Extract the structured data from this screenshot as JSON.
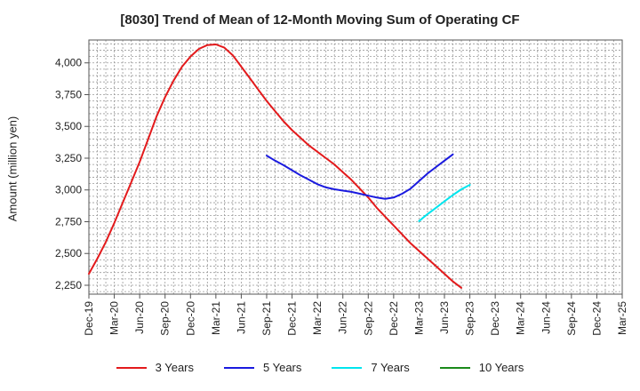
{
  "chart_data": {
    "type": "line",
    "title": "[8030]  Trend of Mean of 12-Month Moving Sum of Operating CF",
    "xlabel": "",
    "ylabel": "Amount (million yen)",
    "ylim": [
      2180,
      4180
    ],
    "yticks": [
      2250,
      2500,
      2750,
      3000,
      3250,
      3500,
      3750,
      4000
    ],
    "ytick_labels": [
      "2,250",
      "2,500",
      "2,750",
      "3,000",
      "3,250",
      "3,500",
      "3,750",
      "4,000"
    ],
    "x_start": "Dec-19",
    "x_end": "Mar-25",
    "xtick_labels": [
      "Dec-19",
      "Mar-20",
      "Jun-20",
      "Sep-20",
      "Dec-20",
      "Mar-21",
      "Jun-21",
      "Sep-21",
      "Dec-21",
      "Mar-22",
      "Jun-22",
      "Sep-22",
      "Dec-22",
      "Mar-23",
      "Jun-23",
      "Sep-23",
      "Dec-23",
      "Mar-24",
      "Jun-24",
      "Sep-24",
      "Dec-24",
      "Mar-25"
    ],
    "grid": true,
    "legend_position": "bottom",
    "series": [
      {
        "name": "3 Years",
        "color": "#e31a1c",
        "x": [
          0,
          1,
          2,
          3,
          4,
          5,
          6,
          7,
          8,
          9,
          10,
          11,
          12,
          13,
          14,
          15,
          16,
          17,
          18,
          19,
          20,
          21,
          22,
          23,
          24,
          25,
          26,
          27,
          28,
          29,
          30,
          31,
          32,
          33,
          34,
          35,
          36,
          37,
          38,
          39,
          40,
          41,
          42,
          43,
          44,
          45,
          46,
          47,
          48,
          49,
          50,
          51
        ],
        "y": [
          2340,
          2460,
          2590,
          2740,
          2900,
          3060,
          3220,
          3400,
          3580,
          3730,
          3860,
          3970,
          4050,
          4110,
          4140,
          4145,
          4120,
          4060,
          3970,
          3880,
          3790,
          3700,
          3620,
          3540,
          3470,
          3410,
          3350,
          3300,
          3250,
          3200,
          3140,
          3080,
          3010,
          2940,
          2860,
          2790,
          2720,
          2650,
          2580,
          2520,
          2460,
          2400,
          2340,
          2280,
          2230,
          null,
          null,
          null,
          null,
          null,
          null,
          null
        ]
      },
      {
        "name": "5 Years",
        "color": "#1a1adf",
        "x": [
          21,
          22,
          23,
          24,
          25,
          26,
          27,
          28,
          29,
          30,
          31,
          32,
          33,
          34,
          35,
          36,
          37,
          38,
          39,
          40,
          41,
          42,
          43,
          44,
          45
        ],
        "y": [
          3270,
          3230,
          3195,
          3155,
          3115,
          3080,
          3045,
          3020,
          3005,
          2995,
          2985,
          2970,
          2955,
          2940,
          2930,
          2940,
          2970,
          3010,
          3070,
          3130,
          3180,
          3230,
          3280,
          null,
          null
        ]
      },
      {
        "name": "7 Years",
        "color": "#00e5ee",
        "x": [
          39,
          40,
          41,
          42,
          43,
          44,
          45
        ],
        "y": [
          2755,
          2810,
          2860,
          2910,
          2960,
          3005,
          3040
        ]
      },
      {
        "name": "10 Years",
        "color": "#1a8a1a",
        "x": [],
        "y": []
      }
    ]
  }
}
